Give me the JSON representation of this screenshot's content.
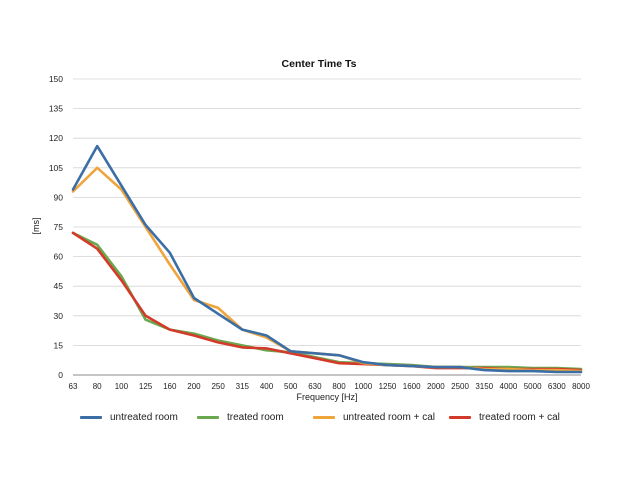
{
  "chart_data": {
    "type": "line",
    "title": "Center Time Ts",
    "xlabel": "Frequency [Hz]",
    "ylabel": "[ms]",
    "ylim": [
      0,
      150
    ],
    "yticks": [
      0,
      15,
      30,
      45,
      60,
      75,
      90,
      105,
      120,
      135,
      150
    ],
    "grid": true,
    "legend_position": "bottom",
    "categories": [
      "63",
      "80",
      "100",
      "125",
      "160",
      "200",
      "250",
      "315",
      "400",
      "500",
      "630",
      "800",
      "1000",
      "1250",
      "1600",
      "2000",
      "2500",
      "3150",
      "4000",
      "5000",
      "6300",
      "8000"
    ],
    "series": [
      {
        "name": "untreated room",
        "color": "#3a6ea5",
        "values": [
          94,
          116,
          96,
          76,
          62,
          39,
          31,
          23,
          20,
          12,
          11,
          10,
          6.5,
          5,
          4.5,
          4,
          4,
          2.5,
          2,
          2,
          1.5,
          1.5
        ]
      },
      {
        "name": "treated room",
        "color": "#6aa84f",
        "values": [
          72,
          66,
          50,
          28,
          23,
          21,
          17.5,
          15,
          12.5,
          11.5,
          9,
          6.5,
          6,
          5.5,
          5,
          4,
          4,
          4,
          4,
          3.5,
          3.5,
          3
        ]
      },
      {
        "name": "untreated room + cal",
        "color": "#f0a43c",
        "values": [
          93,
          105,
          94,
          75,
          56,
          38,
          34,
          23,
          19,
          12,
          11,
          10,
          6,
          5,
          4.5,
          4,
          4,
          3,
          3,
          2.5,
          2.5,
          2
        ]
      },
      {
        "name": "treated room + cal",
        "color": "#d43a2a",
        "values": [
          72,
          64,
          48,
          30,
          23,
          20,
          16.5,
          14,
          13.5,
          11,
          8.5,
          6,
          5.5,
          5,
          4.5,
          3.5,
          3.5,
          3.5,
          3,
          3,
          3,
          2.5
        ]
      }
    ]
  }
}
